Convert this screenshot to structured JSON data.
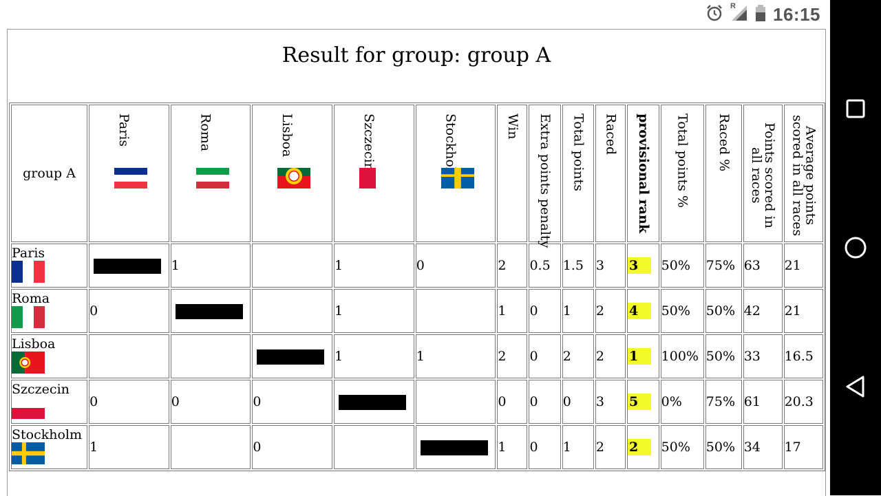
{
  "status": {
    "time": "16:15",
    "signal_label": "R"
  },
  "title": "Result for group: group A",
  "corner_label": "group A",
  "team_columns": [
    {
      "name": "Paris",
      "flag": "fr"
    },
    {
      "name": "Roma",
      "flag": "it"
    },
    {
      "name": "Lisboa",
      "flag": "pt"
    },
    {
      "name": "Szczecin",
      "flag": "pl"
    },
    {
      "name": "Stockholm",
      "flag": "se"
    }
  ],
  "stat_columns": [
    {
      "label": "Win"
    },
    {
      "label": "Extra points penalty"
    },
    {
      "label": "Total points"
    },
    {
      "label": "Raced"
    },
    {
      "label": "provisional rank",
      "bold": true
    },
    {
      "label": "Total points %"
    },
    {
      "label": "Raced %"
    },
    {
      "label": "Points scored in all races"
    },
    {
      "label": "Average points scored in all races"
    }
  ],
  "rows": [
    {
      "name": "Paris",
      "flag": "fr",
      "results": [
        "X",
        "1",
        "",
        "1",
        "0"
      ],
      "stats": [
        "2",
        "0.5",
        "1.5",
        "3",
        "3",
        "50%",
        "75%",
        "63",
        "21"
      ]
    },
    {
      "name": "Roma",
      "flag": "it",
      "results": [
        "0",
        "X",
        "",
        "1",
        ""
      ],
      "stats": [
        "1",
        "0",
        "1",
        "2",
        "4",
        "50%",
        "50%",
        "42",
        "21"
      ]
    },
    {
      "name": "Lisboa",
      "flag": "pt",
      "results": [
        "",
        "",
        "X",
        "1",
        "1"
      ],
      "stats": [
        "2",
        "0",
        "2",
        "2",
        "1",
        "100%",
        "50%",
        "33",
        "16.5"
      ]
    },
    {
      "name": "Szczecin",
      "flag": "pl",
      "results": [
        "0",
        "0",
        "0",
        "X",
        ""
      ],
      "stats": [
        "0",
        "0",
        "0",
        "3",
        "5",
        "0%",
        "75%",
        "61",
        "20.3"
      ]
    },
    {
      "name": "Stockholm",
      "flag": "se",
      "results": [
        "1",
        "",
        "0",
        "",
        "X"
      ],
      "stats": [
        "1",
        "0",
        "1",
        "2",
        "2",
        "50%",
        "50%",
        "34",
        "17"
      ]
    }
  ],
  "colors": {
    "highlight": "#f4f92a",
    "fr_blue": "#0b2e91",
    "fr_red": "#ef3340",
    "it_green": "#129a4b",
    "it_red": "#d12d3c",
    "pt_green": "#046a38",
    "pt_red": "#e8151e",
    "pl_red": "#dc143c",
    "se_blue": "#005da4",
    "se_yellow": "#fecc02"
  }
}
